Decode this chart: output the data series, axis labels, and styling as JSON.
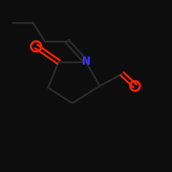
{
  "bg_color": "#000000",
  "line_color": "#000000",
  "bond_color": "#1a1a1a",
  "skeleton_color": "#111111",
  "N_color": "#3333ff",
  "O_color": "#ff2200",
  "white_bond": "#ffffff",
  "fig_bg": "#0d0d0d",
  "lw": 1.8,
  "lw_thick": 2.0
}
